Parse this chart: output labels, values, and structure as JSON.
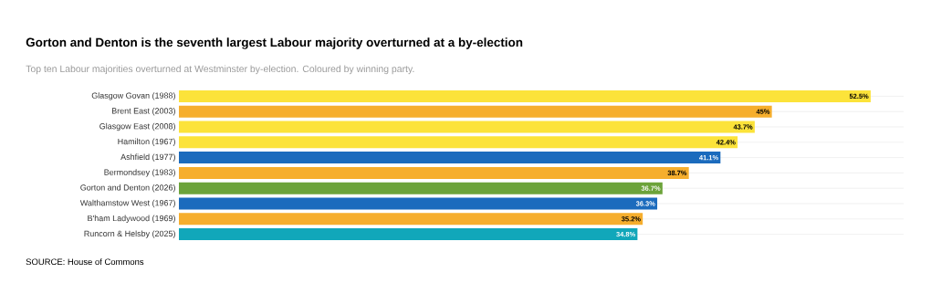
{
  "chart_data": {
    "type": "bar",
    "orientation": "horizontal",
    "title": "Gorton and Denton is the seventh largest Labour majority overturned at a by-election",
    "subtitle": "Top ten Labour majorities overturned at Westminster by-election. Coloured by winning party.",
    "annotations": [
      "SOURCE: House of Commons"
    ],
    "categories": [
      "Glasgow Govan (1988)",
      "Brent East (2003)",
      "Glasgow East (2008)",
      "Hamilton (1967)",
      "Ashfield (1977)",
      "Bermondsey (1983)",
      "Gorton and Denton (2026)",
      "Walthamstow West (1967)",
      "B'ham Ladywood (1969)",
      "Runcorn & Helsby (2025)"
    ],
    "values": [
      52.5,
      45,
      43.7,
      42.4,
      41.1,
      38.7,
      36.7,
      36.3,
      35.2,
      34.8
    ],
    "value_labels": [
      "52.5%",
      "45%",
      "43.7%",
      "42.4%",
      "41.1%",
      "38.7%",
      "36.7%",
      "36.3%",
      "35.2%",
      "34.8%"
    ],
    "colors": [
      "#fce33a",
      "#f6ae2d",
      "#fce33a",
      "#fce33a",
      "#1b6bbd",
      "#f6ae2d",
      "#6ca33a",
      "#1b6bbd",
      "#f6ae2d",
      "#11a7ba"
    ],
    "xlim": [
      0,
      55
    ],
    "grid": "y"
  }
}
